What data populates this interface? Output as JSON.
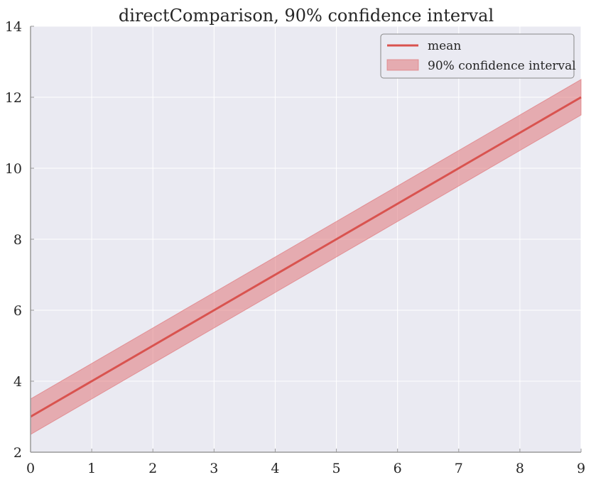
{
  "chart_data": {
    "type": "line",
    "title": "directComparison, 90% confidence interval",
    "xlabel": "",
    "ylabel": "",
    "x": [
      0,
      1,
      2,
      3,
      4,
      5,
      6,
      7,
      8,
      9
    ],
    "series": [
      {
        "name": "mean",
        "kind": "line",
        "color": "#d9534f",
        "values": [
          3,
          4,
          5,
          6,
          7,
          8,
          9,
          10,
          11,
          12
        ]
      },
      {
        "name": "90% confidence interval",
        "kind": "band",
        "color": "#e0767a",
        "lower": [
          2.5,
          3.5,
          4.5,
          5.5,
          6.5,
          7.5,
          8.5,
          9.5,
          10.5,
          11.5
        ],
        "upper": [
          3.5,
          4.5,
          5.5,
          6.5,
          7.5,
          8.5,
          9.5,
          10.5,
          11.5,
          12.5
        ]
      }
    ],
    "xlim": [
      0,
      9
    ],
    "ylim": [
      2,
      14
    ],
    "xticks": [
      "0",
      "1",
      "2",
      "3",
      "4",
      "5",
      "6",
      "7",
      "8",
      "9"
    ],
    "yticks": [
      "2",
      "4",
      "6",
      "8",
      "10",
      "12",
      "14"
    ],
    "grid": true,
    "legend": "top-right",
    "background": "#eaeaf2",
    "grid_color": "#ffffff",
    "spine_color": "#999999"
  }
}
